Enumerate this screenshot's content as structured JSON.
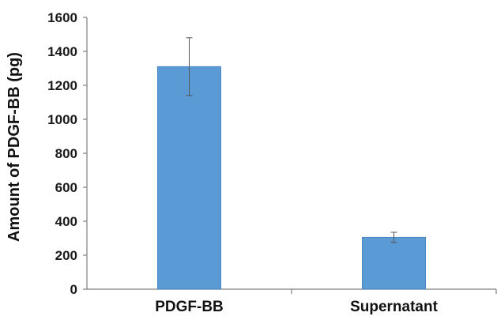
{
  "chart_data": {
    "type": "bar",
    "title": "",
    "xlabel": "",
    "ylabel": "Amount of PDGF-BB (pg)",
    "categories": [
      "PDGF-BB",
      "Supernatant"
    ],
    "values": [
      1310,
      305
    ],
    "error": [
      170,
      30
    ],
    "ylim": [
      0,
      1600
    ],
    "yticks": [
      "0",
      "200",
      "400",
      "600",
      "800",
      "1000",
      "1200",
      "1400",
      "1600"
    ],
    "grid": false,
    "legend": "none",
    "bar_color": "#5b9bd5",
    "bar_edge_color": "#4a86c0",
    "axis_color": "#7f7f7f",
    "error_color": "#555555"
  }
}
